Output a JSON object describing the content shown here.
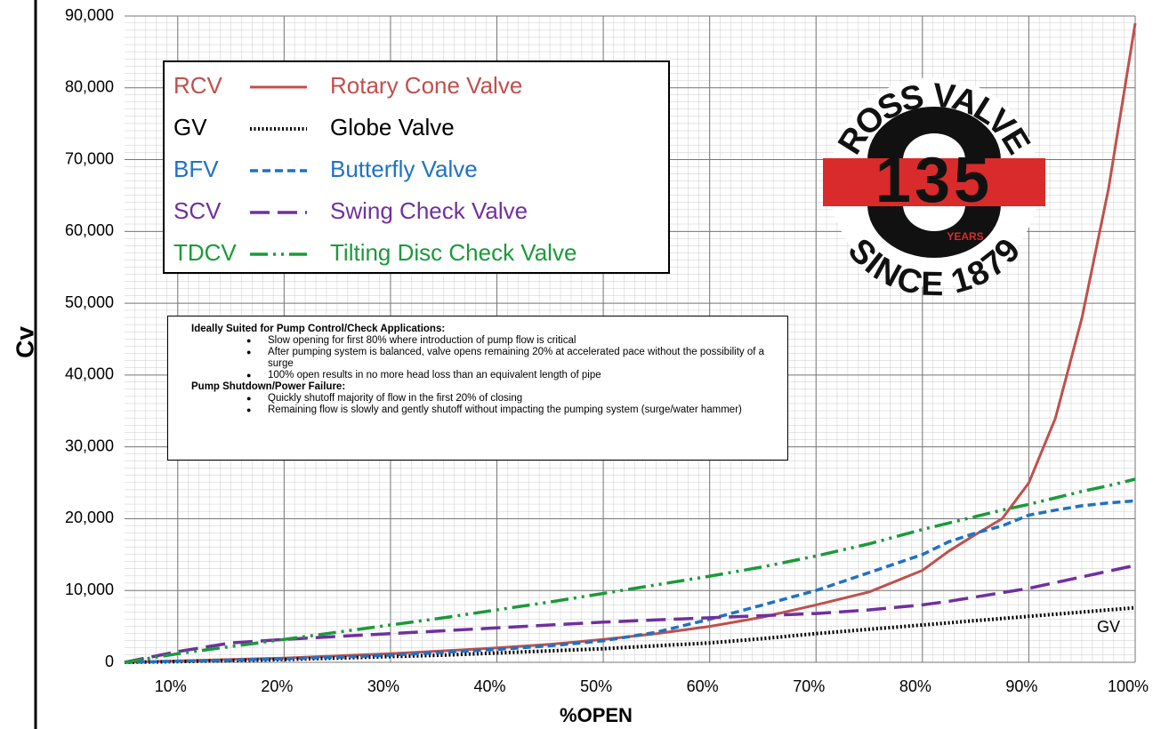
{
  "chart_data": {
    "type": "line",
    "x_label": "%OPEN",
    "y_label": "Cv",
    "x": [
      5,
      10,
      15,
      20,
      25,
      30,
      35,
      40,
      45,
      50,
      55,
      60,
      65,
      70,
      75,
      80,
      82.5,
      85,
      87.5,
      90,
      92.5,
      95,
      97.5,
      100
    ],
    "series": [
      {
        "abbr": "RCV",
        "name": "Rotary Cone Valve",
        "color": "#c0504d",
        "dash": "solid",
        "values": [
          0,
          200,
          400,
          600,
          900,
          1200,
          1600,
          2000,
          2500,
          3200,
          4000,
          5000,
          6300,
          8000,
          9800,
          12800,
          15500,
          17800,
          20000,
          25000,
          34000,
          48000,
          66000,
          89000
        ]
      },
      {
        "abbr": "GV",
        "name": "Globe Valve",
        "color": "#000000",
        "dash": "dotted",
        "values": [
          0,
          100,
          250,
          400,
          600,
          800,
          1000,
          1300,
          1600,
          1900,
          2300,
          2700,
          3300,
          4000,
          4600,
          5200,
          5500,
          5800,
          6100,
          6400,
          6700,
          7000,
          7300,
          7600
        ]
      },
      {
        "abbr": "BFV",
        "name": "Butterfly Valve",
        "color": "#1f72c4",
        "dash": "dashed",
        "values": [
          0,
          150,
          300,
          500,
          700,
          1000,
          1400,
          1800,
          2300,
          3000,
          4200,
          6000,
          8000,
          10000,
          12500,
          15000,
          16800,
          18000,
          19000,
          20500,
          21200,
          21800,
          22200,
          22500
        ]
      },
      {
        "abbr": "SCV",
        "name": "Swing Check Valve",
        "color": "#7030a0",
        "dash": "long-dash",
        "values": [
          0,
          1500,
          2700,
          3200,
          3600,
          4000,
          4400,
          4800,
          5200,
          5600,
          5900,
          6200,
          6500,
          6800,
          7300,
          8000,
          8500,
          9100,
          9700,
          10300,
          11100,
          11900,
          12700,
          13500
        ]
      },
      {
        "abbr": "TDCV",
        "name": "Tilting Disc Check Valve",
        "color": "#1a9a3a",
        "dash": "dash-dot-dot",
        "values": [
          0,
          1200,
          2200,
          3200,
          4200,
          5200,
          6200,
          7300,
          8400,
          9600,
          10800,
          12000,
          13300,
          14800,
          16500,
          18500,
          19400,
          20300,
          21200,
          22000,
          22900,
          23800,
          24600,
          25500
        ]
      }
    ],
    "xlim": [
      5,
      100
    ],
    "xticks": [
      {
        "value": 10,
        "label": "10%"
      },
      {
        "value": 20,
        "label": "20%"
      },
      {
        "value": 30,
        "label": "30%"
      },
      {
        "value": 40,
        "label": "40%"
      },
      {
        "value": 50,
        "label": "50%"
      },
      {
        "value": 60,
        "label": "60%"
      },
      {
        "value": 70,
        "label": "70%"
      },
      {
        "value": 80,
        "label": "80%"
      },
      {
        "value": 90,
        "label": "90%"
      },
      {
        "value": 100,
        "label": "100%"
      }
    ],
    "ylim": [
      0,
      90000
    ],
    "yticks": [
      0,
      {
        "value": 10000,
        "label": "10,000"
      },
      {
        "value": 20000,
        "label": "20,000"
      },
      {
        "value": 30000,
        "label": "30,000"
      },
      {
        "value": 40000,
        "label": "40,000"
      },
      {
        "value": 50000,
        "label": "50,000"
      },
      {
        "value": 60000,
        "label": "60,000"
      },
      {
        "value": 70000,
        "label": "70,000"
      },
      {
        "value": 80000,
        "label": "80,000"
      },
      {
        "value": 90000,
        "label": "90,000"
      }
    ],
    "grid": true,
    "annotation": "GV",
    "notes": [
      {
        "heading": "Ideally Suited for Pump Control/Check Applications:",
        "bullets": [
          "Slow opening for first 80% where introduction of pump flow is critical",
          "After pumping system is balanced, valve opens remaining 20% at accelerated pace without the possibility of a surge",
          "100% open results in no more head loss than an equivalent length of pipe"
        ]
      },
      {
        "heading": "Pump Shutdown/Power Failure:",
        "bullets": [
          "Quickly shutoff majority of flow in the first 20% of closing",
          "Remaining flow is slowly and gently shutoff without impacting the pumping system (surge/water hammer)"
        ]
      }
    ],
    "logo": {
      "top": "ROSS VALVE",
      "number": "135",
      "years": "YEARS",
      "bottom": "SINCE 1879"
    }
  }
}
